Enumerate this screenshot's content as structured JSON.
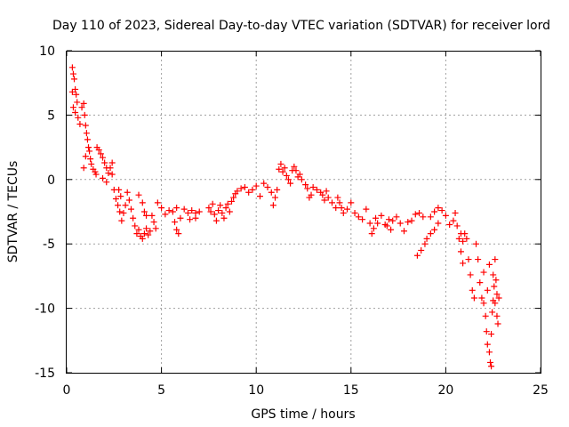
{
  "chart_data": {
    "type": "scatter",
    "title": "Day 110 of 2023, Sidereal Day-to-day VTEC variation (SDTVAR) for receiver lord",
    "xlabel": "GPS time / hours",
    "ylabel": "SDTVAR / TECUs",
    "xlim": [
      0,
      25
    ],
    "ylim": [
      -15,
      10
    ],
    "xticks": [
      0,
      5,
      10,
      15,
      20,
      25
    ],
    "yticks": [
      10,
      5,
      0,
      -5,
      -10,
      -15
    ],
    "grid": true,
    "marker": "+",
    "color": "#ff0000",
    "series": [
      {
        "name": "SDTVAR",
        "points": [
          [
            0.3,
            8.7
          ],
          [
            0.35,
            8.2
          ],
          [
            0.4,
            7.8
          ],
          [
            0.45,
            7.0
          ],
          [
            0.5,
            6.6
          ],
          [
            0.55,
            6.0
          ],
          [
            0.3,
            6.8
          ],
          [
            0.35,
            5.6
          ],
          [
            0.45,
            5.2
          ],
          [
            0.6,
            4.8
          ],
          [
            0.7,
            4.3
          ],
          [
            0.8,
            5.6
          ],
          [
            0.9,
            5.9
          ],
          [
            0.95,
            5.0
          ],
          [
            1.0,
            4.2
          ],
          [
            1.05,
            3.6
          ],
          [
            1.1,
            3.1
          ],
          [
            1.15,
            2.5
          ],
          [
            1.2,
            2.2
          ],
          [
            1.25,
            1.6
          ],
          [
            0.9,
            0.9
          ],
          [
            1.0,
            1.8
          ],
          [
            1.3,
            1.2
          ],
          [
            1.4,
            0.8
          ],
          [
            1.5,
            0.6
          ],
          [
            1.55,
            0.4
          ],
          [
            1.6,
            2.5
          ],
          [
            1.7,
            2.3
          ],
          [
            1.8,
            2.0
          ],
          [
            1.9,
            1.7
          ],
          [
            2.0,
            1.3
          ],
          [
            2.1,
            0.9
          ],
          [
            2.2,
            0.5
          ],
          [
            2.3,
            0.9
          ],
          [
            2.4,
            0.4
          ],
          [
            1.9,
            0.1
          ],
          [
            2.1,
            -0.2
          ],
          [
            2.4,
            1.3
          ],
          [
            2.5,
            -0.8
          ],
          [
            2.6,
            -1.5
          ],
          [
            2.7,
            -2.0
          ],
          [
            2.8,
            -2.5
          ],
          [
            2.9,
            -3.2
          ],
          [
            2.75,
            -0.8
          ],
          [
            2.85,
            -1.3
          ],
          [
            3.0,
            -2.6
          ],
          [
            3.1,
            -2.0
          ],
          [
            3.2,
            -1.0
          ],
          [
            3.3,
            -1.6
          ],
          [
            3.4,
            -2.3
          ],
          [
            3.5,
            -3.0
          ],
          [
            3.6,
            -3.6
          ],
          [
            3.7,
            -4.2
          ],
          [
            3.8,
            -3.9
          ],
          [
            3.9,
            -4.4
          ],
          [
            4.0,
            -4.6
          ],
          [
            4.1,
            -4.2
          ],
          [
            4.2,
            -3.8
          ],
          [
            4.3,
            -4.3
          ],
          [
            4.4,
            -4.0
          ],
          [
            3.8,
            -1.2
          ],
          [
            4.0,
            -1.8
          ],
          [
            4.1,
            -2.5
          ],
          [
            4.2,
            -2.8
          ],
          [
            4.5,
            -2.8
          ],
          [
            4.6,
            -3.3
          ],
          [
            4.7,
            -3.8
          ],
          [
            4.8,
            -1.8
          ],
          [
            5.0,
            -2.2
          ],
          [
            5.2,
            -2.7
          ],
          [
            5.4,
            -2.4
          ],
          [
            5.6,
            -2.5
          ],
          [
            5.8,
            -2.2
          ],
          [
            6.0,
            -3.0
          ],
          [
            5.7,
            -3.3
          ],
          [
            5.8,
            -3.9
          ],
          [
            5.9,
            -4.2
          ],
          [
            6.2,
            -2.3
          ],
          [
            6.4,
            -2.6
          ],
          [
            6.6,
            -2.4
          ],
          [
            6.8,
            -2.6
          ],
          [
            7.0,
            -2.5
          ],
          [
            6.5,
            -3.1
          ],
          [
            6.8,
            -3.0
          ],
          [
            7.5,
            -2.2
          ],
          [
            7.6,
            -2.5
          ],
          [
            7.7,
            -1.9
          ],
          [
            7.8,
            -2.7
          ],
          [
            7.9,
            -3.2
          ],
          [
            8.0,
            -2.4
          ],
          [
            8.1,
            -2.0
          ],
          [
            8.2,
            -2.6
          ],
          [
            8.3,
            -3.0
          ],
          [
            8.4,
            -2.2
          ],
          [
            8.5,
            -1.9
          ],
          [
            8.6,
            -2.5
          ],
          [
            8.7,
            -1.7
          ],
          [
            8.8,
            -1.4
          ],
          [
            8.9,
            -1.1
          ],
          [
            9.0,
            -0.9
          ],
          [
            9.2,
            -0.7
          ],
          [
            9.4,
            -0.6
          ],
          [
            9.6,
            -1.0
          ],
          [
            9.8,
            -0.8
          ],
          [
            10.0,
            -0.5
          ],
          [
            10.2,
            -1.3
          ],
          [
            10.4,
            -0.3
          ],
          [
            10.6,
            -0.6
          ],
          [
            10.8,
            -1.0
          ],
          [
            10.9,
            -2.0
          ],
          [
            11.0,
            -1.4
          ],
          [
            11.1,
            -0.8
          ],
          [
            11.2,
            0.8
          ],
          [
            11.3,
            1.2
          ],
          [
            11.4,
            0.6
          ],
          [
            11.5,
            0.9
          ],
          [
            11.6,
            0.3
          ],
          [
            11.7,
            0.0
          ],
          [
            11.8,
            -0.3
          ],
          [
            11.9,
            0.7
          ],
          [
            12.0,
            1.0
          ],
          [
            12.1,
            0.7
          ],
          [
            12.2,
            0.2
          ],
          [
            12.3,
            0.4
          ],
          [
            12.4,
            0.0
          ],
          [
            12.6,
            -0.4
          ],
          [
            12.7,
            -0.7
          ],
          [
            12.8,
            -1.4
          ],
          [
            12.9,
            -1.2
          ],
          [
            13.0,
            -0.6
          ],
          [
            13.2,
            -0.8
          ],
          [
            13.4,
            -1.0
          ],
          [
            13.5,
            -1.2
          ],
          [
            13.6,
            -1.6
          ],
          [
            13.7,
            -0.9
          ],
          [
            13.8,
            -1.4
          ],
          [
            14.0,
            -1.8
          ],
          [
            14.2,
            -2.2
          ],
          [
            14.3,
            -1.4
          ],
          [
            14.4,
            -1.8
          ],
          [
            14.5,
            -2.2
          ],
          [
            14.6,
            -2.6
          ],
          [
            14.8,
            -2.3
          ],
          [
            15.0,
            -1.8
          ],
          [
            15.2,
            -2.6
          ],
          [
            15.4,
            -2.9
          ],
          [
            15.6,
            -3.1
          ],
          [
            15.8,
            -2.3
          ],
          [
            16.0,
            -3.4
          ],
          [
            16.1,
            -4.2
          ],
          [
            16.2,
            -3.8
          ],
          [
            16.3,
            -3.0
          ],
          [
            16.4,
            -3.4
          ],
          [
            16.6,
            -2.8
          ],
          [
            16.8,
            -3.5
          ],
          [
            16.9,
            -3.6
          ],
          [
            17.0,
            -3.1
          ],
          [
            17.1,
            -3.9
          ],
          [
            17.2,
            -3.2
          ],
          [
            17.4,
            -2.9
          ],
          [
            17.6,
            -3.4
          ],
          [
            17.8,
            -4.0
          ],
          [
            18.0,
            -3.3
          ],
          [
            18.2,
            -3.2
          ],
          [
            18.4,
            -2.7
          ],
          [
            18.6,
            -2.6
          ],
          [
            18.8,
            -2.9
          ],
          [
            18.5,
            -5.9
          ],
          [
            18.7,
            -5.5
          ],
          [
            18.9,
            -5.0
          ],
          [
            19.0,
            -4.6
          ],
          [
            19.2,
            -4.2
          ],
          [
            19.4,
            -3.9
          ],
          [
            19.6,
            -3.4
          ],
          [
            19.2,
            -2.9
          ],
          [
            19.4,
            -2.5
          ],
          [
            19.6,
            -2.2
          ],
          [
            19.8,
            -2.4
          ],
          [
            20.0,
            -2.8
          ],
          [
            20.2,
            -3.5
          ],
          [
            20.4,
            -3.2
          ],
          [
            20.5,
            -2.6
          ],
          [
            20.6,
            -3.6
          ],
          [
            20.7,
            -4.6
          ],
          [
            20.8,
            -5.6
          ],
          [
            20.9,
            -6.5
          ],
          [
            20.8,
            -4.2
          ],
          [
            20.9,
            -4.8
          ],
          [
            21.0,
            -4.2
          ],
          [
            21.1,
            -4.6
          ],
          [
            21.2,
            -6.2
          ],
          [
            21.3,
            -7.4
          ],
          [
            21.4,
            -8.6
          ],
          [
            21.5,
            -9.2
          ],
          [
            21.6,
            -5.0
          ],
          [
            21.7,
            -6.2
          ],
          [
            21.8,
            -8.0
          ],
          [
            21.9,
            -9.2
          ],
          [
            22.0,
            -7.2
          ],
          [
            22.1,
            -10.6
          ],
          [
            22.15,
            -11.8
          ],
          [
            22.2,
            -12.8
          ],
          [
            22.3,
            -13.4
          ],
          [
            22.35,
            -14.2
          ],
          [
            22.4,
            -14.5
          ],
          [
            22.4,
            -12.0
          ],
          [
            22.45,
            -10.3
          ],
          [
            22.5,
            -9.4
          ],
          [
            22.55,
            -8.3
          ],
          [
            22.6,
            -9.6
          ],
          [
            22.65,
            -7.8
          ],
          [
            22.7,
            -8.9
          ],
          [
            22.7,
            -10.6
          ],
          [
            22.75,
            -11.2
          ],
          [
            22.3,
            -6.6
          ],
          [
            22.5,
            -7.4
          ],
          [
            22.6,
            -6.2
          ],
          [
            22.2,
            -8.6
          ],
          [
            22.0,
            -9.6
          ],
          [
            22.8,
            -9.2
          ]
        ]
      }
    ]
  }
}
